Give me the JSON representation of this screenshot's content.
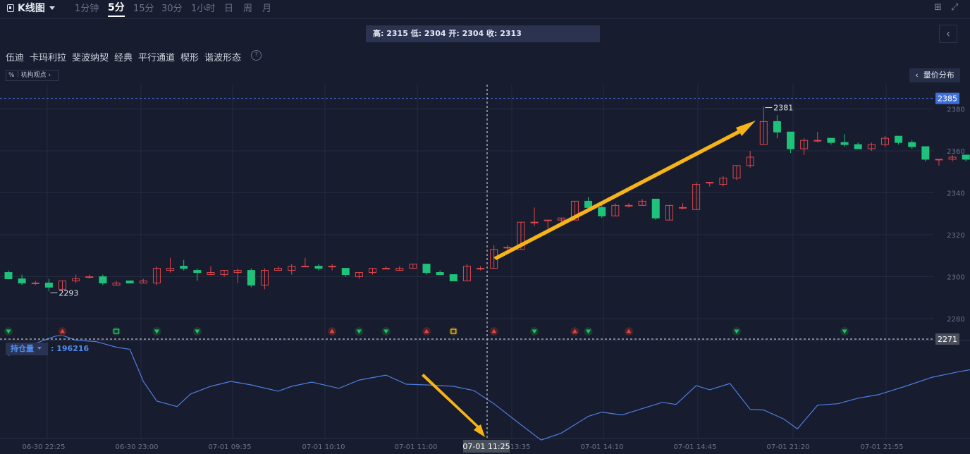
{
  "toolbar": {
    "title": "K线图",
    "timeframes": [
      "1分钟",
      "5分",
      "15分",
      "30分",
      "1小时",
      "日",
      "周",
      "月"
    ],
    "active_timeframe": "5分"
  },
  "ohlc_tooltip": "高: 2315 低: 2304 开: 2304 收: 2313",
  "patterns": [
    "伍迪",
    "卡玛利拉",
    "斐波纳契",
    "经典",
    "平行通道",
    "楔形",
    "谐波形态"
  ],
  "help_label": "?",
  "institution": {
    "percent_label": "%",
    "label": "机构观点"
  },
  "volume_profile_button": "量价分布",
  "open_interest": {
    "label": "持仓量",
    "value": ": 196216"
  },
  "crosshair": {
    "price": "2271",
    "time": "07-01 11:25"
  },
  "current_price": "2385",
  "colors": {
    "up": "#e0474e",
    "down": "#1fc27a",
    "oi_line": "#4e7fe0",
    "arrow": "#f7b417",
    "price_tag": "#3f6fd9"
  },
  "chart_data": {
    "type": "candlestick",
    "y_ticks": [
      2280,
      2300,
      2320,
      2340,
      2360,
      2380
    ],
    "x_labels": [
      "06-30 22:25",
      "06-30 23:00",
      "07-01 09:35",
      "07-01 10:10",
      "07-01 11:00",
      "13:35",
      "07-01 14:10",
      "07-01 14:45",
      "07-01 21:20",
      "07-01 21:55"
    ],
    "annotations": {
      "high": "2381",
      "low": "2293"
    },
    "candles": [
      {
        "o": 2302,
        "h": 2303,
        "l": 2299,
        "c": 2299
      },
      {
        "o": 2299,
        "h": 2301,
        "l": 2296,
        "c": 2297
      },
      {
        "o": 2297,
        "h": 2298,
        "l": 2296,
        "c": 2297
      },
      {
        "o": 2297,
        "h": 2299,
        "l": 2293,
        "c": 2295
      },
      {
        "o": 2294,
        "h": 2298,
        "l": 2293,
        "c": 2298
      },
      {
        "o": 2298,
        "h": 2301,
        "l": 2297,
        "c": 2299
      },
      {
        "o": 2300,
        "h": 2301,
        "l": 2299,
        "c": 2300
      },
      {
        "o": 2300,
        "h": 2301,
        "l": 2296,
        "c": 2297
      },
      {
        "o": 2296,
        "h": 2298,
        "l": 2296,
        "c": 2297
      },
      {
        "o": 2298,
        "h": 2298,
        "l": 2297,
        "c": 2297
      },
      {
        "o": 2297,
        "h": 2299,
        "l": 2297,
        "c": 2298
      },
      {
        "o": 2297,
        "h": 2305,
        "l": 2296,
        "c": 2304
      },
      {
        "o": 2303,
        "h": 2309,
        "l": 2302,
        "c": 2304
      },
      {
        "o": 2305,
        "h": 2308,
        "l": 2303,
        "c": 2304
      },
      {
        "o": 2303,
        "h": 2304,
        "l": 2298,
        "c": 2302
      },
      {
        "o": 2301,
        "h": 2305,
        "l": 2301,
        "c": 2302
      },
      {
        "o": 2301,
        "h": 2303,
        "l": 2300,
        "c": 2303
      },
      {
        "o": 2302,
        "h": 2304,
        "l": 2297,
        "c": 2303
      },
      {
        "o": 2303,
        "h": 2304,
        "l": 2295,
        "c": 2296
      },
      {
        "o": 2296,
        "h": 2304,
        "l": 2294,
        "c": 2303
      },
      {
        "o": 2303,
        "h": 2305,
        "l": 2303,
        "c": 2304
      },
      {
        "o": 2303,
        "h": 2306,
        "l": 2301,
        "c": 2305
      },
      {
        "o": 2305,
        "h": 2309,
        "l": 2305,
        "c": 2305
      },
      {
        "o": 2305,
        "h": 2306,
        "l": 2303,
        "c": 2304
      },
      {
        "o": 2305,
        "h": 2306,
        "l": 2303,
        "c": 2305
      },
      {
        "o": 2304,
        "h": 2304,
        "l": 2300,
        "c": 2301
      },
      {
        "o": 2300,
        "h": 2302,
        "l": 2299,
        "c": 2302
      },
      {
        "o": 2302,
        "h": 2304,
        "l": 2301,
        "c": 2304
      },
      {
        "o": 2304,
        "h": 2305,
        "l": 2304,
        "c": 2304
      },
      {
        "o": 2303,
        "h": 2305,
        "l": 2303,
        "c": 2304
      },
      {
        "o": 2304,
        "h": 2306,
        "l": 2304,
        "c": 2306
      },
      {
        "o": 2306,
        "h": 2306,
        "l": 2301,
        "c": 2302
      },
      {
        "o": 2302,
        "h": 2303,
        "l": 2301,
        "c": 2301
      },
      {
        "o": 2301,
        "h": 2301,
        "l": 2298,
        "c": 2298
      },
      {
        "o": 2298,
        "h": 2306,
        "l": 2298,
        "c": 2305
      },
      {
        "o": 2304,
        "h": 2305,
        "l": 2303,
        "c": 2304
      },
      {
        "o": 2304,
        "h": 2315,
        "l": 2304,
        "c": 2313
      },
      {
        "o": 2314,
        "h": 2315,
        "l": 2313,
        "c": 2314
      },
      {
        "o": 2313,
        "h": 2326,
        "l": 2313,
        "c": 2326
      },
      {
        "o": 2326,
        "h": 2333,
        "l": 2324,
        "c": 2326
      },
      {
        "o": 2327,
        "h": 2327,
        "l": 2323,
        "c": 2327
      },
      {
        "o": 2327,
        "h": 2328,
        "l": 2326,
        "c": 2328
      },
      {
        "o": 2327,
        "h": 2336,
        "l": 2327,
        "c": 2336
      },
      {
        "o": 2336,
        "h": 2338,
        "l": 2332,
        "c": 2333
      },
      {
        "o": 2333,
        "h": 2335,
        "l": 2328,
        "c": 2329
      },
      {
        "o": 2329,
        "h": 2335,
        "l": 2329,
        "c": 2334
      },
      {
        "o": 2334,
        "h": 2335,
        "l": 2333,
        "c": 2334
      },
      {
        "o": 2334,
        "h": 2337,
        "l": 2334,
        "c": 2336
      },
      {
        "o": 2337,
        "h": 2337,
        "l": 2327,
        "c": 2328
      },
      {
        "o": 2327,
        "h": 2334,
        "l": 2327,
        "c": 2334
      },
      {
        "o": 2333,
        "h": 2335,
        "l": 2332,
        "c": 2333
      },
      {
        "o": 2332,
        "h": 2345,
        "l": 2332,
        "c": 2344
      },
      {
        "o": 2345,
        "h": 2345,
        "l": 2343,
        "c": 2345
      },
      {
        "o": 2344,
        "h": 2348,
        "l": 2343,
        "c": 2347
      },
      {
        "o": 2347,
        "h": 2353,
        "l": 2346,
        "c": 2353
      },
      {
        "o": 2353,
        "h": 2360,
        "l": 2352,
        "c": 2357
      },
      {
        "o": 2363,
        "h": 2381,
        "l": 2363,
        "c": 2374
      },
      {
        "o": 2374,
        "h": 2377,
        "l": 2366,
        "c": 2369
      },
      {
        "o": 2369,
        "h": 2369,
        "l": 2359,
        "c": 2361
      },
      {
        "o": 2361,
        "h": 2366,
        "l": 2358,
        "c": 2365
      },
      {
        "o": 2365,
        "h": 2369,
        "l": 2364,
        "c": 2365
      },
      {
        "o": 2366,
        "h": 2366,
        "l": 2363,
        "c": 2364
      },
      {
        "o": 2364,
        "h": 2368,
        "l": 2362,
        "c": 2363
      },
      {
        "o": 2363,
        "h": 2364,
        "l": 2361,
        "c": 2361
      },
      {
        "o": 2361,
        "h": 2364,
        "l": 2360,
        "c": 2363
      },
      {
        "o": 2363,
        "h": 2367,
        "l": 2362,
        "c": 2366
      },
      {
        "o": 2367,
        "h": 2367,
        "l": 2363,
        "c": 2364
      },
      {
        "o": 2364,
        "h": 2365,
        "l": 2361,
        "c": 2362
      },
      {
        "o": 2362,
        "h": 2362,
        "l": 2355,
        "c": 2356
      },
      {
        "o": 2356,
        "h": 2356,
        "l": 2353,
        "c": 2356
      },
      {
        "o": 2356,
        "h": 2358,
        "l": 2355,
        "c": 2357
      },
      {
        "o": 2358,
        "h": 2358,
        "l": 2355,
        "c": 2356
      }
    ],
    "open_interest_series": [
      {
        "x": 0.0,
        "v": 41
      },
      {
        "x": 1.5,
        "v": 55
      },
      {
        "x": 3.5,
        "v": 69
      },
      {
        "x": 4.0,
        "v": 70
      },
      {
        "x": 5.0,
        "v": 63
      },
      {
        "x": 6.5,
        "v": 61
      },
      {
        "x": 8.0,
        "v": 53
      },
      {
        "x": 9.0,
        "v": 50
      },
      {
        "x": 10.0,
        "v": 4
      },
      {
        "x": 11.0,
        "v": -24
      },
      {
        "x": 12.5,
        "v": -32
      },
      {
        "x": 13.5,
        "v": -14
      },
      {
        "x": 15.0,
        "v": -3
      },
      {
        "x": 16.5,
        "v": 4
      },
      {
        "x": 18.0,
        "v": -1
      },
      {
        "x": 20.0,
        "v": -10
      },
      {
        "x": 21.0,
        "v": -3
      },
      {
        "x": 22.5,
        "v": 3
      },
      {
        "x": 24.5,
        "v": -6
      },
      {
        "x": 26.0,
        "v": 6
      },
      {
        "x": 28.0,
        "v": 13
      },
      {
        "x": 29.5,
        "v": 0
      },
      {
        "x": 31.0,
        "v": -1
      },
      {
        "x": 33.0,
        "v": -3
      },
      {
        "x": 34.5,
        "v": -9
      },
      {
        "x": 36.0,
        "v": -28
      },
      {
        "x": 38.0,
        "v": -58
      },
      {
        "x": 39.5,
        "v": -80
      },
      {
        "x": 41.0,
        "v": -70
      },
      {
        "x": 43.0,
        "v": -46
      },
      {
        "x": 44.0,
        "v": -40
      },
      {
        "x": 45.5,
        "v": -44
      },
      {
        "x": 47.0,
        "v": -35
      },
      {
        "x": 48.5,
        "v": -26
      },
      {
        "x": 49.5,
        "v": -29
      },
      {
        "x": 51.0,
        "v": -2
      },
      {
        "x": 52.0,
        "v": -8
      },
      {
        "x": 53.5,
        "v": 1
      },
      {
        "x": 55.0,
        "v": -36
      },
      {
        "x": 56.0,
        "v": -37
      },
      {
        "x": 57.5,
        "v": -50
      },
      {
        "x": 58.5,
        "v": -64
      },
      {
        "x": 60.0,
        "v": -30
      },
      {
        "x": 61.5,
        "v": -28
      },
      {
        "x": 63.0,
        "v": -20
      },
      {
        "x": 64.5,
        "v": -15
      },
      {
        "x": 66.5,
        "v": -3
      },
      {
        "x": 68.5,
        "v": 10
      },
      {
        "x": 70.5,
        "v": 18
      },
      {
        "x": 72.0,
        "v": 23
      },
      {
        "x": 73.5,
        "v": 22
      },
      {
        "x": 75.5,
        "v": 13
      },
      {
        "x": 76.5,
        "v": 16
      },
      {
        "x": 78.0,
        "v": 11
      },
      {
        "x": 80.5,
        "v": 12
      }
    ],
    "signal_markers": [
      {
        "i": 0,
        "kind": "down"
      },
      {
        "i": 4,
        "kind": "up"
      },
      {
        "i": 8,
        "kind": "special"
      },
      {
        "i": 11,
        "kind": "down"
      },
      {
        "i": 14,
        "kind": "down"
      },
      {
        "i": 24,
        "kind": "up"
      },
      {
        "i": 26,
        "kind": "down-alt"
      },
      {
        "i": 28,
        "kind": "down"
      },
      {
        "i": 31,
        "kind": "up"
      },
      {
        "i": 33,
        "kind": "warn"
      },
      {
        "i": 36,
        "kind": "up-arrow"
      },
      {
        "i": 39,
        "kind": "down-alt"
      },
      {
        "i": 42,
        "kind": "up"
      },
      {
        "i": 43,
        "kind": "down-alt"
      },
      {
        "i": 46,
        "kind": "up-arrow"
      },
      {
        "i": 54,
        "kind": "down"
      },
      {
        "i": 62,
        "kind": "down"
      }
    ]
  }
}
